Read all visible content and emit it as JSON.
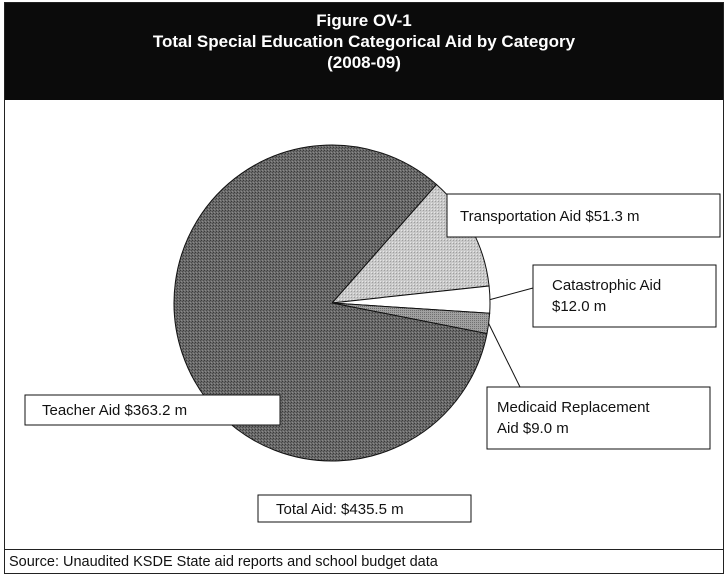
{
  "header": {
    "figure_label": "Figure OV-1",
    "title": "Total Special Education Categorical Aid by Category",
    "subtitle": "(2008-09)"
  },
  "source": "Source: Unaudited KSDE State aid reports and school budget data",
  "chart_data": {
    "type": "pie",
    "title": "Total Special Education Categorical Aid by Category",
    "subtitle": "(2008-09)",
    "unit": "$ millions",
    "slices": [
      {
        "label": "Transportation Aid $51.3 m",
        "value": 51.3,
        "color": "#b8b8b8"
      },
      {
        "label": "Catastrophic Aid $12.0 m",
        "value": 12.0,
        "color": "#ffffff"
      },
      {
        "label": "Medicaid Replacement Aid $9.0 m",
        "value": 9.0,
        "color": "#9a9a9a"
      },
      {
        "label": "Teacher Aid $363.2 m",
        "value": 363.2,
        "color": "#5a5a5a"
      }
    ],
    "total_label": "Total Aid: $435.5 m",
    "total": 435.5
  }
}
